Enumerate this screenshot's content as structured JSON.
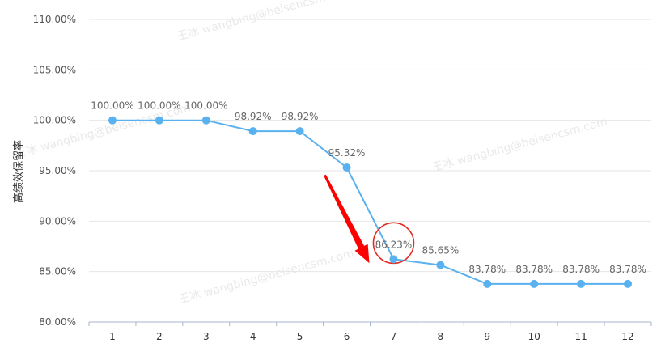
{
  "chart_data": {
    "type": "line",
    "title": "",
    "xlabel": "",
    "ylabel": "高绩效保留率",
    "categories": [
      "1",
      "2",
      "3",
      "4",
      "5",
      "6",
      "7",
      "8",
      "9",
      "10",
      "11",
      "12"
    ],
    "values": [
      100.0,
      100.0,
      100.0,
      98.92,
      98.92,
      95.32,
      86.23,
      85.65,
      83.78,
      83.78,
      83.78,
      83.78
    ],
    "data_labels": [
      "100.00%",
      "100.00%",
      "100.00%",
      "98.92%",
      "98.92%",
      "95.32%",
      "86.23%",
      "85.65%",
      "83.78%",
      "83.78%",
      "83.78%",
      "83.78%"
    ],
    "yticks": [
      "80.00%",
      "85.00%",
      "90.00%",
      "95.00%",
      "100.00%",
      "105.00%",
      "110.00%"
    ],
    "ylim": [
      80,
      110
    ],
    "grid": true,
    "line_color": "#5ab1ef",
    "highlight": {
      "category": "7",
      "circle_color": "#e02b20",
      "arrow_color": "#ff0000"
    }
  },
  "watermarks": [
    "王冰 wangbing@beisencsm.com",
    "王冰 wangbing@beisencsm.com",
    "王冰 wangbing@beisencsm.com",
    "王冰 wangbing@beisencsm.com"
  ]
}
